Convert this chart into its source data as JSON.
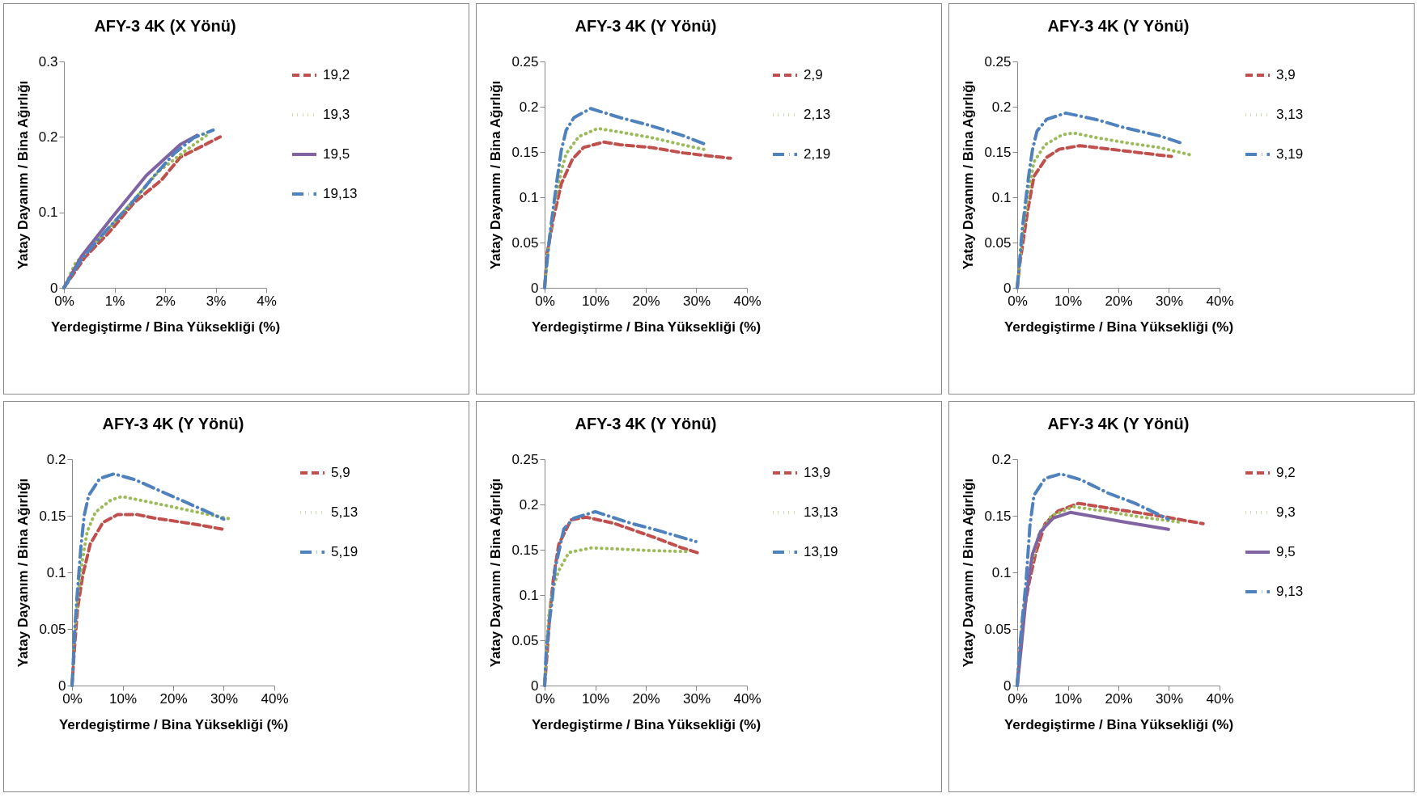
{
  "chart_data": [
    {
      "type": "line",
      "title": "AFY-3  4K  (X Yönü)",
      "xlabel": "Yerdegiştirme / Bina Yüksekliği (%)",
      "ylabel": "Yatay Dayanım / Bina Ağırlığı",
      "legend": "right",
      "grid": false,
      "xlim": [
        0,
        0.04
      ],
      "xticks": [
        {
          "value": 0,
          "label": "0%"
        },
        {
          "value": 0.01,
          "label": "1%"
        },
        {
          "value": 0.02,
          "label": "2%"
        },
        {
          "value": 0.03,
          "label": "3%"
        },
        {
          "value": 0.04,
          "label": "4%"
        }
      ],
      "ylim": [
        0,
        0.3
      ],
      "yticks": [
        0,
        0.1,
        0.2,
        0.3
      ],
      "series": [
        {
          "name": "19,2",
          "color": "#c0504d",
          "line_style": "dashed",
          "x": [
            0,
            0.0041,
            0.009,
            0.0139,
            0.0193,
            0.023,
            0.0309
          ],
          "values": [
            0,
            0.04,
            0.074,
            0.113,
            0.143,
            0.173,
            0.2
          ]
        },
        {
          "name": "19,3",
          "color": "#9bbb59",
          "line_style": "dotted",
          "x": [
            0,
            0.0023,
            0.0084,
            0.0123,
            0.0187,
            0.0239,
            0.0288
          ],
          "values": [
            0,
            0.033,
            0.075,
            0.105,
            0.154,
            0.181,
            0.205
          ]
        },
        {
          "name": "19,5",
          "color": "#8064a2",
          "line_style": "solid",
          "x": [
            0,
            0.0035,
            0.0096,
            0.0163,
            0.023,
            0.0263
          ],
          "values": [
            0,
            0.042,
            0.094,
            0.149,
            0.19,
            0.202
          ]
        },
        {
          "name": "19,13",
          "color": "#4f81bd",
          "line_style": "dashdot",
          "x": [
            0,
            0.0035,
            0.0081,
            0.0136,
            0.0178,
            0.0218,
            0.0257,
            0.0295
          ],
          "values": [
            0,
            0.038,
            0.074,
            0.114,
            0.148,
            0.178,
            0.199,
            0.209
          ]
        }
      ]
    },
    {
      "type": "line",
      "title": "AFY-3  4K  (Y Yönü)",
      "xlabel": "Yerdegiştirme / Bina Yüksekliği (%)",
      "ylabel": "Yatay Dayanım / Bina Ağırlığı",
      "legend": "right",
      "grid": false,
      "xlim": [
        0,
        0.4
      ],
      "xticks": [
        {
          "value": 0,
          "label": "0%"
        },
        {
          "value": 0.1,
          "label": "10%"
        },
        {
          "value": 0.2,
          "label": "20%"
        },
        {
          "value": 0.3,
          "label": "30%"
        },
        {
          "value": 0.4,
          "label": "40%"
        }
      ],
      "ylim": [
        0,
        0.25
      ],
      "yticks": [
        0,
        0.05,
        0.1,
        0.15,
        0.2,
        0.25
      ],
      "series": [
        {
          "name": "2,9",
          "color": "#c0504d",
          "line_style": "dashed",
          "x": [
            0,
            0.005,
            0.0175,
            0.033,
            0.055,
            0.077,
            0.1175,
            0.149,
            0.21,
            0.274,
            0.3675
          ],
          "values": [
            0,
            0.038,
            0.077,
            0.115,
            0.142,
            0.155,
            0.161,
            0.158,
            0.155,
            0.149,
            0.143
          ]
        },
        {
          "name": "2,13",
          "color": "#9bbb59",
          "line_style": "dotted",
          "x": [
            0,
            0.005,
            0.0175,
            0.024,
            0.033,
            0.0425,
            0.0675,
            0.105,
            0.149,
            0.21,
            0.28,
            0.3225
          ],
          "values": [
            0.002,
            0.032,
            0.086,
            0.106,
            0.129,
            0.148,
            0.167,
            0.176,
            0.172,
            0.166,
            0.157,
            0.152
          ]
        },
        {
          "name": "2,19",
          "color": "#4f81bd",
          "line_style": "dashdot",
          "x": [
            0,
            0.002,
            0.011,
            0.024,
            0.033,
            0.0425,
            0.058,
            0.091,
            0.149,
            0.204,
            0.274,
            0.315
          ],
          "values": [
            0,
            0.014,
            0.062,
            0.117,
            0.152,
            0.174,
            0.188,
            0.198,
            0.188,
            0.18,
            0.168,
            0.159
          ]
        }
      ]
    },
    {
      "type": "line",
      "title": "AFY-3  4K  (Y Yönü)",
      "xlabel": "Yerdegiştirme / Bina Yüksekliği (%)",
      "ylabel": "Yatay Dayanım / Bina Ağırlığı",
      "legend": "right",
      "grid": false,
      "xlim": [
        0,
        0.4
      ],
      "xticks": [
        {
          "value": 0,
          "label": "0%"
        },
        {
          "value": 0.1,
          "label": "10%"
        },
        {
          "value": 0.2,
          "label": "20%"
        },
        {
          "value": 0.3,
          "label": "30%"
        },
        {
          "value": 0.4,
          "label": "40%"
        }
      ],
      "ylim": [
        0,
        0.25
      ],
      "yticks": [
        0,
        0.05,
        0.1,
        0.15,
        0.2,
        0.25
      ],
      "series": [
        {
          "name": "3,9",
          "color": "#c0504d",
          "line_style": "dashed",
          "x": [
            0,
            0.005,
            0.0206,
            0.033,
            0.058,
            0.083,
            0.124,
            0.155,
            0.23,
            0.305
          ],
          "values": [
            0,
            0.026,
            0.085,
            0.123,
            0.144,
            0.153,
            0.157,
            0.155,
            0.15,
            0.145
          ]
        },
        {
          "name": "3,13",
          "color": "#9bbb59",
          "line_style": "dotted",
          "x": [
            0,
            0.004,
            0.011,
            0.0225,
            0.033,
            0.055,
            0.089,
            0.111,
            0.155,
            0.2175,
            0.28,
            0.349
          ],
          "values": [
            0.002,
            0.021,
            0.062,
            0.107,
            0.139,
            0.158,
            0.169,
            0.171,
            0.166,
            0.16,
            0.155,
            0.146
          ]
        },
        {
          "name": "3,19",
          "color": "#4f81bd",
          "line_style": "dashdot",
          "x": [
            0,
            0.0025,
            0.01,
            0.0225,
            0.03,
            0.039,
            0.058,
            0.096,
            0.155,
            0.211,
            0.28,
            0.324
          ],
          "values": [
            0,
            0.015,
            0.065,
            0.123,
            0.152,
            0.173,
            0.186,
            0.193,
            0.186,
            0.177,
            0.168,
            0.16
          ]
        }
      ]
    },
    {
      "type": "line",
      "title": "AFY-3  4K  (Y Yönü)",
      "xlabel": "Yerdegiştirme / Bina Yüksekliği (%)",
      "ylabel": "Yatay Dayanım / Bina Ağırlığı",
      "legend": "right",
      "grid": false,
      "xlim": [
        0,
        0.4
      ],
      "xticks": [
        {
          "value": 0,
          "label": "0%"
        },
        {
          "value": 0.1,
          "label": "10%"
        },
        {
          "value": 0.2,
          "label": "20%"
        },
        {
          "value": 0.3,
          "label": "30%"
        },
        {
          "value": 0.4,
          "label": "40%"
        }
      ],
      "ylim": [
        0,
        0.2
      ],
      "yticks": [
        0,
        0.05,
        0.1,
        0.15,
        0.2
      ],
      "series": [
        {
          "name": "5,9",
          "color": "#c0504d",
          "line_style": "dashed",
          "x": [
            0,
            0.005,
            0.011,
            0.021,
            0.036,
            0.061,
            0.09,
            0.13,
            0.162,
            0.237,
            0.3
          ],
          "values": [
            0,
            0.034,
            0.068,
            0.097,
            0.125,
            0.144,
            0.151,
            0.151,
            0.148,
            0.143,
            0.138
          ]
        },
        {
          "name": "5,13",
          "color": "#9bbb59",
          "line_style": "dotted",
          "x": [
            0,
            0.002,
            0.005,
            0.011,
            0.021,
            0.03,
            0.046,
            0.077,
            0.099,
            0.143,
            0.187,
            0.25,
            0.315
          ],
          "values": [
            0,
            0.017,
            0.044,
            0.078,
            0.112,
            0.136,
            0.153,
            0.164,
            0.167,
            0.163,
            0.159,
            0.153,
            0.147
          ]
        },
        {
          "name": "5,19",
          "color": "#4f81bd",
          "line_style": "dashdot",
          "x": [
            0,
            0.002,
            0.005,
            0.011,
            0.0175,
            0.024,
            0.033,
            0.055,
            0.083,
            0.124,
            0.174,
            0.23,
            0.3
          ],
          "values": [
            0,
            0.015,
            0.048,
            0.085,
            0.122,
            0.15,
            0.168,
            0.183,
            0.187,
            0.182,
            0.172,
            0.161,
            0.147
          ]
        }
      ]
    },
    {
      "type": "line",
      "title": "AFY-3  4K  (Y Yönü)",
      "xlabel": "Yerdegiştirme / Bina Yüksekliği (%)",
      "ylabel": "Yatay Dayanım / Bina Ağırlığı",
      "legend": "right",
      "grid": false,
      "xlim": [
        0,
        0.4
      ],
      "xticks": [
        {
          "value": 0,
          "label": "0%"
        },
        {
          "value": 0.1,
          "label": "10%"
        },
        {
          "value": 0.2,
          "label": "20%"
        },
        {
          "value": 0.3,
          "label": "30%"
        },
        {
          "value": 0.4,
          "label": "40%"
        }
      ],
      "ylim": [
        0,
        0.25
      ],
      "yticks": [
        0,
        0.05,
        0.1,
        0.15,
        0.2,
        0.25
      ],
      "series": [
        {
          "name": "13,9",
          "color": "#c0504d",
          "line_style": "dashed",
          "x": [
            0,
            0.005,
            0.011,
            0.018,
            0.028,
            0.052,
            0.082,
            0.138,
            0.215,
            0.272,
            0.306
          ],
          "values": [
            0,
            0.036,
            0.085,
            0.121,
            0.156,
            0.183,
            0.186,
            0.179,
            0.164,
            0.152,
            0.146
          ]
        },
        {
          "name": "13,13",
          "color": "#9bbb59",
          "line_style": "dotted",
          "x": [
            0,
            0.003,
            0.008,
            0.017,
            0.028,
            0.048,
            0.092,
            0.138,
            0.212,
            0.28
          ],
          "values": [
            0.002,
            0.033,
            0.076,
            0.108,
            0.127,
            0.147,
            0.152,
            0.151,
            0.149,
            0.148
          ]
        },
        {
          "name": "13,19",
          "color": "#4f81bd",
          "line_style": "dashdot",
          "x": [
            0,
            0.003,
            0.01,
            0.015,
            0.021,
            0.038,
            0.058,
            0.1,
            0.172,
            0.22,
            0.299
          ],
          "values": [
            0,
            0.036,
            0.073,
            0.095,
            0.13,
            0.173,
            0.185,
            0.192,
            0.179,
            0.172,
            0.159
          ]
        }
      ]
    },
    {
      "type": "line",
      "title": "AFY-3  4K  (Y Yönü)",
      "xlabel": "Yerdegiştirme / Bina Yüksekliği (%)",
      "ylabel": "Yatay Dayanım / Bina Ağırlığı",
      "legend": "right",
      "grid": false,
      "xlim": [
        0,
        0.4
      ],
      "xticks": [
        {
          "value": 0,
          "label": "0%"
        },
        {
          "value": 0.1,
          "label": "10%"
        },
        {
          "value": 0.2,
          "label": "20%"
        },
        {
          "value": 0.3,
          "label": "30%"
        },
        {
          "value": 0.4,
          "label": "40%"
        }
      ],
      "ylim": [
        0,
        0.2
      ],
      "yticks": [
        0,
        0.05,
        0.1,
        0.15,
        0.2
      ],
      "series": [
        {
          "name": "9,2",
          "color": "#c0504d",
          "line_style": "dashed",
          "x": [
            0,
            0.005,
            0.014,
            0.024,
            0.036,
            0.055,
            0.08,
            0.121,
            0.205,
            0.28,
            0.3675
          ],
          "values": [
            0,
            0.029,
            0.068,
            0.092,
            0.116,
            0.143,
            0.154,
            0.161,
            0.155,
            0.15,
            0.143
          ]
        },
        {
          "name": "9,3",
          "color": "#9bbb59",
          "line_style": "dotted",
          "x": [
            0,
            0.011,
            0.024,
            0.0425,
            0.0675,
            0.111,
            0.174,
            0.2425,
            0.327
          ],
          "values": [
            0,
            0.063,
            0.099,
            0.133,
            0.15,
            0.158,
            0.154,
            0.149,
            0.144
          ]
        },
        {
          "name": "9,5",
          "color": "#8064a2",
          "line_style": "solid",
          "x": [
            0,
            0.008,
            0.0175,
            0.03,
            0.046,
            0.071,
            0.105,
            0.205,
            0.299
          ],
          "values": [
            0,
            0.034,
            0.078,
            0.116,
            0.136,
            0.148,
            0.153,
            0.145,
            0.138
          ]
        },
        {
          "name": "9,13",
          "color": "#4f81bd",
          "line_style": "dashdot",
          "x": [
            0,
            0.004,
            0.01,
            0.0175,
            0.025,
            0.033,
            0.055,
            0.086,
            0.125,
            0.18,
            0.233,
            0.299
          ],
          "values": [
            0,
            0.029,
            0.058,
            0.092,
            0.141,
            0.168,
            0.183,
            0.187,
            0.182,
            0.17,
            0.161,
            0.147
          ]
        }
      ]
    }
  ]
}
